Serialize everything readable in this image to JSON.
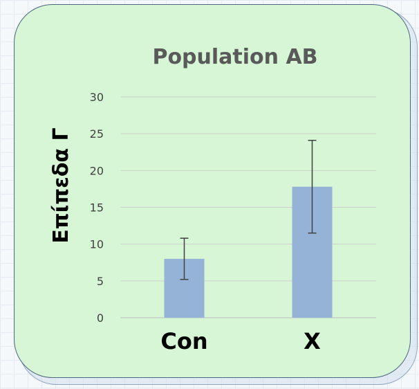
{
  "chart_data": {
    "type": "bar",
    "title": "Population AB",
    "xlabel": "",
    "ylabel": "Επίπεδα Γ",
    "categories": [
      "Con",
      "X"
    ],
    "values": [
      8,
      17.8
    ],
    "error_low": [
      5.2,
      11.5
    ],
    "error_high": [
      10.8,
      24.1
    ],
    "ylim": [
      0,
      30
    ],
    "yticks": [
      "0",
      "5",
      "10",
      "15",
      "20",
      "25",
      "30"
    ],
    "grid": true,
    "legend": "none",
    "bar_color": "#95b3d7"
  },
  "colors": {
    "card_background": "#d6f6d5",
    "card_border": "#4c6680",
    "title_color": "#595959"
  }
}
